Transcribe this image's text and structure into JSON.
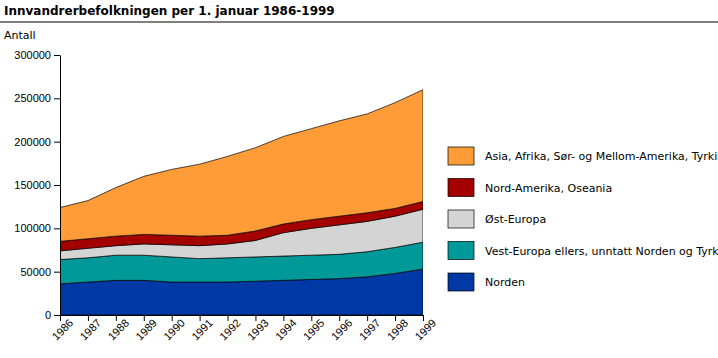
{
  "chart_data": {
    "type": "area",
    "title": "Innvandrerbefolkningen per 1. januar 1986-1999",
    "ylabel": "Antall",
    "categories": [
      "1986",
      "1987",
      "1988",
      "1989",
      "1990",
      "1991",
      "1992",
      "1993",
      "1994",
      "1995",
      "1996",
      "1997",
      "1998",
      "1999"
    ],
    "series": [
      {
        "name": "Norden",
        "color": "#0039a6",
        "values": [
          36000,
          38000,
          40000,
          40000,
          38000,
          38000,
          38000,
          39000,
          40000,
          41000,
          42000,
          44000,
          48000,
          53000
        ]
      },
      {
        "name": "Vest-Europa ellers, unntatt Norden og Tyrkia",
        "color": "#009999",
        "values": [
          28000,
          28000,
          29000,
          29000,
          29000,
          27000,
          28000,
          28000,
          28000,
          28000,
          28000,
          29000,
          30000,
          31000
        ]
      },
      {
        "name": "Øst-Europa",
        "color": "#d4d4d4",
        "values": [
          10000,
          11000,
          11000,
          13000,
          14000,
          15000,
          16000,
          19000,
          27000,
          31000,
          34000,
          35000,
          36000,
          38000
        ]
      },
      {
        "name": "Nord-Amerika, Oseania",
        "color": "#a50000",
        "values": [
          11000,
          11000,
          11000,
          11000,
          11000,
          11000,
          10000,
          11000,
          10000,
          10000,
          10000,
          10000,
          9000,
          9000
        ]
      },
      {
        "name": "Asia, Afrika, Sør- og Mellom-Amerika, Tyrkia",
        "color": "#ff9c38",
        "values": [
          39000,
          44000,
          56000,
          67000,
          76000,
          83000,
          91000,
          96000,
          101000,
          105000,
          110000,
          114000,
          122000,
          129000
        ]
      }
    ],
    "ylim": [
      0,
      300000
    ],
    "yticks": [
      0,
      50000,
      100000,
      150000,
      200000,
      250000,
      300000
    ],
    "stacked": true,
    "grid": false,
    "legend": "right"
  }
}
